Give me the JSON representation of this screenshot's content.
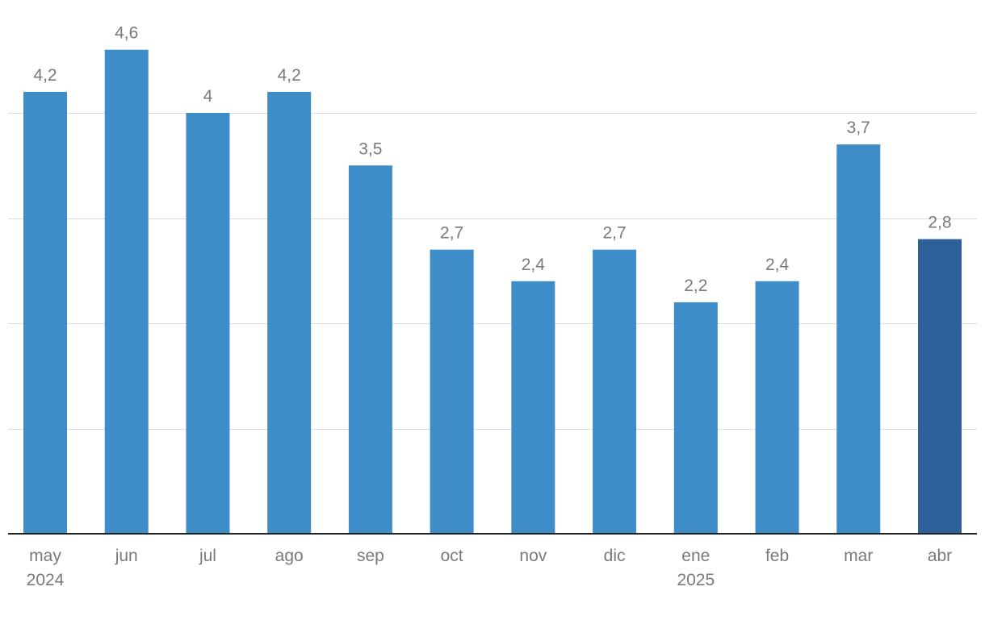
{
  "chart_data": {
    "type": "bar",
    "categories": [
      "may",
      "jun",
      "jul",
      "ago",
      "sep",
      "oct",
      "nov",
      "dic",
      "ene",
      "feb",
      "mar",
      "abr"
    ],
    "category_sublabels": [
      "2024",
      "",
      "",
      "",
      "",
      "",
      "",
      "",
      "2025",
      "",
      "",
      ""
    ],
    "values": [
      4.2,
      4.6,
      4,
      4.2,
      3.5,
      2.7,
      2.4,
      2.7,
      2.2,
      2.4,
      3.7,
      2.8
    ],
    "value_labels": [
      "4,2",
      "4,6",
      "4",
      "4,2",
      "3,5",
      "2,7",
      "2,4",
      "2,7",
      "2,2",
      "2,4",
      "3,7",
      "2,8"
    ],
    "highlight_index": 11,
    "ylim": [
      0,
      5
    ],
    "gridlines": [
      1,
      2,
      3,
      4
    ],
    "grid": true,
    "title": "",
    "xlabel": "",
    "ylabel": "",
    "colors": {
      "bar": "#3f8dc8",
      "bar_highlight": "#2d5f98",
      "grid": "#dcdcdc",
      "axis": "#222222",
      "text": "#7a7a7a"
    }
  }
}
